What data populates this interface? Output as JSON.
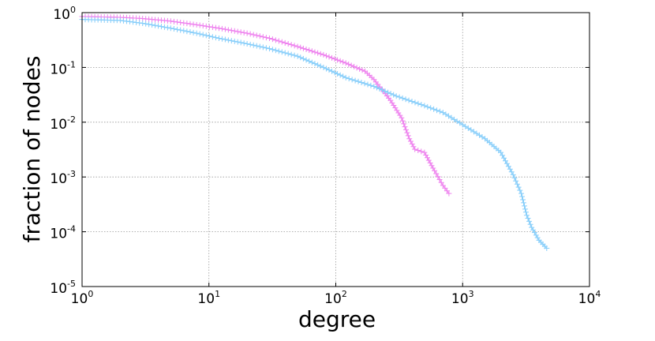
{
  "chart_data": {
    "type": "line",
    "title": "",
    "xlabel": "degree",
    "ylabel": "fraction of nodes",
    "xscale": "log",
    "yscale": "log",
    "xlim": [
      1,
      10000
    ],
    "ylim": [
      1e-05,
      1
    ],
    "grid": true,
    "legend": "none",
    "marker": "+",
    "x_ticks": [
      {
        "base": "10",
        "exp": "0",
        "value": 1
      },
      {
        "base": "10",
        "exp": "1",
        "value": 10
      },
      {
        "base": "10",
        "exp": "2",
        "value": 100
      },
      {
        "base": "10",
        "exp": "3",
        "value": 1000
      },
      {
        "base": "10",
        "exp": "4",
        "value": 10000
      }
    ],
    "y_ticks": [
      {
        "base": "10",
        "exp": "0",
        "value": 1
      },
      {
        "base": "10",
        "exp": "-1",
        "value": 0.1
      },
      {
        "base": "10",
        "exp": "-2",
        "value": 0.01
      },
      {
        "base": "10",
        "exp": "-3",
        "value": 0.001
      },
      {
        "base": "10",
        "exp": "-4",
        "value": 0.0001
      },
      {
        "base": "10",
        "exp": "-5",
        "value": 1e-05
      }
    ],
    "series": [
      {
        "color": "#ee82ee",
        "points": [
          [
            1,
            0.85
          ],
          [
            2,
            0.82
          ],
          [
            3,
            0.78
          ],
          [
            5,
            0.7
          ],
          [
            8,
            0.6
          ],
          [
            12,
            0.52
          ],
          [
            20,
            0.42
          ],
          [
            30,
            0.34
          ],
          [
            50,
            0.24
          ],
          [
            80,
            0.17
          ],
          [
            120,
            0.12
          ],
          [
            170,
            0.085
          ],
          [
            200,
            0.06
          ],
          [
            230,
            0.04
          ],
          [
            270,
            0.025
          ],
          [
            330,
            0.012
          ],
          [
            380,
            0.005
          ],
          [
            420,
            0.0032
          ],
          [
            500,
            0.0028
          ],
          [
            600,
            0.0013
          ],
          [
            700,
            0.0007
          ],
          [
            780,
            0.0005
          ]
        ]
      },
      {
        "color": "#87cefa",
        "points": [
          [
            1,
            0.75
          ],
          [
            2,
            0.72
          ],
          [
            3,
            0.64
          ],
          [
            5,
            0.52
          ],
          [
            8,
            0.42
          ],
          [
            12,
            0.34
          ],
          [
            20,
            0.27
          ],
          [
            30,
            0.22
          ],
          [
            50,
            0.16
          ],
          [
            80,
            0.1
          ],
          [
            120,
            0.065
          ],
          [
            200,
            0.045
          ],
          [
            300,
            0.03
          ],
          [
            500,
            0.02
          ],
          [
            700,
            0.015
          ],
          [
            1000,
            0.009
          ],
          [
            1500,
            0.005
          ],
          [
            2000,
            0.0028
          ],
          [
            2500,
            0.0011
          ],
          [
            2900,
            0.0005
          ],
          [
            3200,
            0.0002
          ],
          [
            3500,
            0.00012
          ],
          [
            4000,
            7e-05
          ],
          [
            4600,
            5e-05
          ]
        ]
      }
    ]
  }
}
